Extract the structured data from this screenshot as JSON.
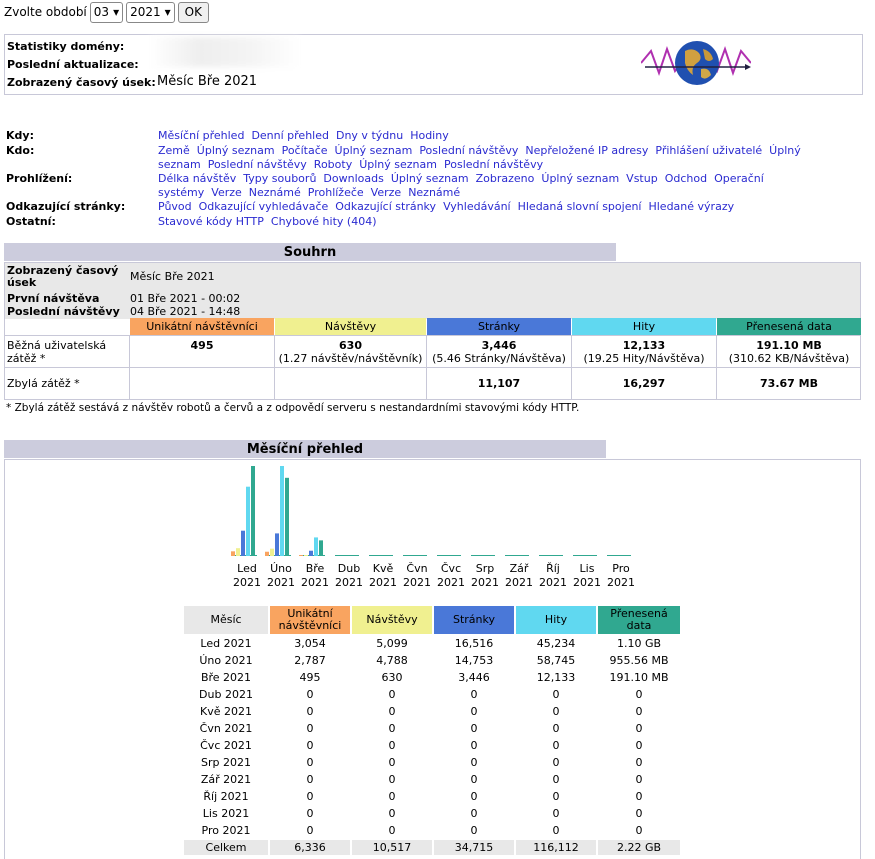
{
  "form": {
    "label": "Zvolte období",
    "month": "03",
    "year": "2021",
    "ok": "OK"
  },
  "header": {
    "domain_label": "Statistiky domény:",
    "updated_label": "Poslední aktualizace:",
    "period_label": "Zobrazený časový úsek:",
    "period_value": "Měsíc Bře 2021"
  },
  "nav": {
    "kdy_label": "Kdy:",
    "kdy": [
      "Měsíční přehled",
      "Denní přehled",
      "Dny v týdnu",
      "Hodiny"
    ],
    "kdo_label": "Kdo:",
    "kdo": [
      "Země",
      "Úplný seznam",
      "Počítače",
      "Úplný seznam",
      "Poslední návštěvy",
      "Nepřeložené IP adresy",
      "Přihlášení uživatelé",
      "Úplný seznam",
      "Poslední návštěvy",
      "Roboty",
      "Úplný seznam",
      "Poslední návštěvy"
    ],
    "prohlizeni_label": "Prohlížení:",
    "prohlizeni": [
      "Délka návštěv",
      "Typy souborů",
      "Downloads",
      "Úplný seznam",
      "Zobrazeno",
      "Úplný seznam",
      "Vstup",
      "Odchod",
      "Operační systémy",
      "Verze",
      "Neznámé",
      "Prohlížeče",
      "Verze",
      "Neznámé"
    ],
    "odkaz_label": "Odkazující stránky:",
    "odkaz": [
      "Původ",
      "Odkazující vyhledávače",
      "Odkazující stránky",
      "Vyhledávání",
      "Hledaná slovní spojení",
      "Hledané výrazy"
    ],
    "ostatni_label": "Ostatní:",
    "ostatni": [
      "Stavové kódy HTTP",
      "Chybové hity (404)"
    ]
  },
  "summary": {
    "title": "Souhrn",
    "period_label": "Zobrazený časový úsek",
    "period_value": "Měsíc Bře 2021",
    "first_label": "První návštěva",
    "first_value": "01 Bře 2021 - 00:02",
    "last_label": "Poslední návštěvy",
    "last_value": "04 Bře 2021 - 14:48",
    "cols": [
      "Unikátní návštěvníci",
      "Návštěvy",
      "Stránky",
      "Hity",
      "Přenesená data"
    ],
    "normal_label": "Běžná uživatelská zátěž *",
    "normal": [
      "495",
      "630",
      "3,446",
      "12,133",
      "191.10 MB"
    ],
    "normal_sub": [
      "",
      "(1.27 návštěv/návštěvník)",
      "(5.46 Stránky/Návštěva)",
      "(19.25 Hity/Návštěva)",
      "(310.62 KB/Návštěva)"
    ],
    "rest_label": "Zbylá zátěž *",
    "rest": [
      "",
      "",
      "11,107",
      "16,297",
      "73.67 MB"
    ],
    "note": "* Zbylá zátěž sestává z návštěv robotů a červů a z odpovědí serveru s nestandardními stavovými kódy HTTP."
  },
  "monthly": {
    "title": "Měsíční přehled",
    "headers": [
      "Měsíc",
      "Unikátní návštěvníci",
      "Návštěvy",
      "Stránky",
      "Hity",
      "Přenesená data"
    ],
    "rows": [
      [
        "Led 2021",
        "3,054",
        "5,099",
        "16,516",
        "45,234",
        "1.10 GB"
      ],
      [
        "Úno 2021",
        "2,787",
        "4,788",
        "14,753",
        "58,745",
        "955.56 MB"
      ],
      [
        "Bře 2021",
        "495",
        "630",
        "3,446",
        "12,133",
        "191.10 MB"
      ],
      [
        "Dub 2021",
        "0",
        "0",
        "0",
        "0",
        "0"
      ],
      [
        "Kvě 2021",
        "0",
        "0",
        "0",
        "0",
        "0"
      ],
      [
        "Čvn 2021",
        "0",
        "0",
        "0",
        "0",
        "0"
      ],
      [
        "Čvc 2021",
        "0",
        "0",
        "0",
        "0",
        "0"
      ],
      [
        "Srp 2021",
        "0",
        "0",
        "0",
        "0",
        "0"
      ],
      [
        "Zář 2021",
        "0",
        "0",
        "0",
        "0",
        "0"
      ],
      [
        "Říj 2021",
        "0",
        "0",
        "0",
        "0",
        "0"
      ],
      [
        "Lis 2021",
        "0",
        "0",
        "0",
        "0",
        "0"
      ],
      [
        "Pro 2021",
        "0",
        "0",
        "0",
        "0",
        "0"
      ]
    ],
    "total": [
      "Celkem",
      "6,336",
      "10,517",
      "34,715",
      "116,112",
      "2.22 GB"
    ]
  },
  "chart_data": {
    "type": "bar",
    "categories": [
      "Led",
      "Úno",
      "Bře",
      "Dub",
      "Kvě",
      "Čvn",
      "Čvc",
      "Srp",
      "Zář",
      "Říj",
      "Lis",
      "Pro"
    ],
    "category_year": "2021",
    "series": [
      {
        "name": "Unikátní návštěvníci",
        "color": "#f9a460",
        "values": [
          3054,
          2787,
          495,
          0,
          0,
          0,
          0,
          0,
          0,
          0,
          0,
          0
        ]
      },
      {
        "name": "Návštěvy",
        "color": "#f0f090",
        "values": [
          5099,
          4788,
          630,
          0,
          0,
          0,
          0,
          0,
          0,
          0,
          0,
          0
        ]
      },
      {
        "name": "Stránky",
        "color": "#4a78d8",
        "values": [
          16516,
          14753,
          3446,
          0,
          0,
          0,
          0,
          0,
          0,
          0,
          0,
          0
        ]
      },
      {
        "name": "Hity",
        "color": "#60d8f0",
        "values": [
          45234,
          58745,
          12133,
          0,
          0,
          0,
          0,
          0,
          0,
          0,
          0,
          0
        ]
      },
      {
        "name": "Přenesená data",
        "color": "#30a890",
        "values": [
          1.1,
          0.95556,
          0.1911,
          0,
          0,
          0,
          0,
          0,
          0,
          0,
          0,
          0
        ]
      }
    ]
  }
}
